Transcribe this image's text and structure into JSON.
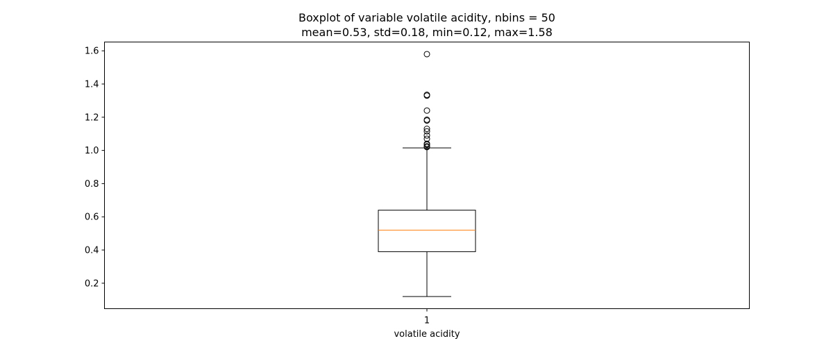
{
  "chart_data": {
    "type": "boxplot",
    "title": "Boxplot of variable volatile acidity, nbins = 50",
    "subtitle": "mean=0.53, std=0.18, min=0.12, max=1.58",
    "xlabel": "volatile acidity",
    "ylabel": "",
    "categories": [
      "1"
    ],
    "ylim": [
      0.0466,
      1.653
    ],
    "yticks": [
      0.2,
      0.4,
      0.6,
      0.8,
      1.0,
      1.2,
      1.4,
      1.6
    ],
    "ytick_labels": [
      "0.2",
      "0.4",
      "0.6",
      "0.8",
      "1.0",
      "1.2",
      "1.4",
      "1.6"
    ],
    "grid": false,
    "series": [
      {
        "stats": {
          "whisker_low": 0.12,
          "q1": 0.39,
          "median": 0.52,
          "q3": 0.64,
          "whisker_high": 1.015
        },
        "outliers": [
          1.02,
          1.025,
          1.035,
          1.04,
          1.07,
          1.09,
          1.115,
          1.13,
          1.18,
          1.185,
          1.24,
          1.33,
          1.335,
          1.58
        ]
      }
    ],
    "colors": {
      "box": "#000000",
      "median": "#ff7f0e",
      "outlier": "#000000",
      "axes": "#000000"
    }
  }
}
